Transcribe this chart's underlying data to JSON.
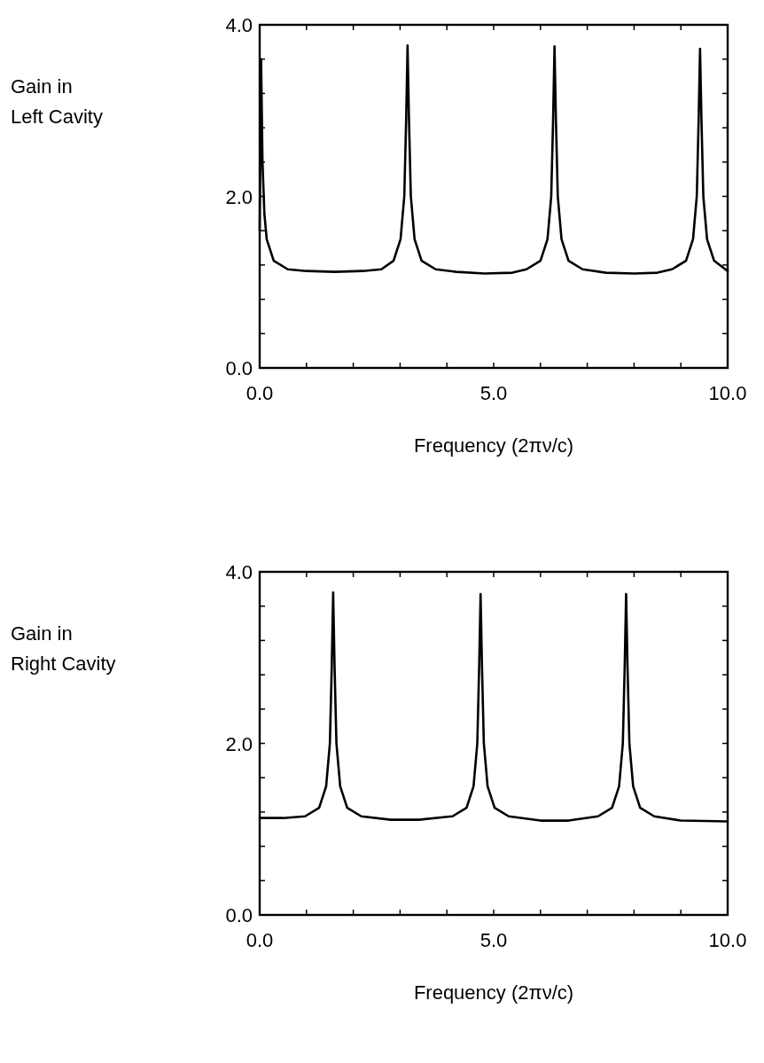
{
  "chart_data": [
    {
      "type": "line",
      "xlabel": "Frequency (2πν/c)",
      "ylabel": "Gain in\nLeft Cavity",
      "xlim": [
        0,
        10
      ],
      "ylim": [
        0,
        4
      ],
      "xticks": [
        {
          "value": 0,
          "label": "0.0"
        },
        {
          "value": 1,
          "label": null
        },
        {
          "value": 2,
          "label": null
        },
        {
          "value": 3,
          "label": null
        },
        {
          "value": 4,
          "label": null
        },
        {
          "value": 5,
          "label": "5.0"
        },
        {
          "value": 6,
          "label": null
        },
        {
          "value": 7,
          "label": null
        },
        {
          "value": 8,
          "label": null
        },
        {
          "value": 9,
          "label": null
        },
        {
          "value": 10,
          "label": "10.0"
        }
      ],
      "yticks": [
        {
          "value": 0,
          "label": "0.0"
        },
        {
          "value": 0.4,
          "label": null
        },
        {
          "value": 0.8,
          "label": null
        },
        {
          "value": 1.2,
          "label": null
        },
        {
          "value": 1.6,
          "label": null
        },
        {
          "value": 2,
          "label": "2.0"
        },
        {
          "value": 2.4,
          "label": null
        },
        {
          "value": 2.8,
          "label": null
        },
        {
          "value": 3.2,
          "label": null
        },
        {
          "value": 3.6,
          "label": null
        },
        {
          "value": 4,
          "label": "4.0"
        }
      ],
      "series": [
        {
          "color": "#000000",
          "x": [
            0,
            0.03,
            0.06,
            0.1,
            0.15,
            0.3,
            0.6,
            1.0,
            1.6,
            2.2,
            2.6,
            2.86,
            3.01,
            3.09,
            3.13,
            3.16,
            3.19,
            3.23,
            3.31,
            3.46,
            3.76,
            4.2,
            4.8,
            5.4,
            5.7,
            6.0,
            6.15,
            6.23,
            6.27,
            6.3,
            6.33,
            6.37,
            6.45,
            6.6,
            6.9,
            7.4,
            8.0,
            8.5,
            8.81,
            9.11,
            9.26,
            9.34,
            9.38,
            9.41,
            9.44,
            9.48,
            9.56,
            9.71,
            10
          ],
          "values": [
            1.6,
            3.6,
            2.4,
            1.8,
            1.5,
            1.25,
            1.15,
            1.13,
            1.12,
            1.13,
            1.15,
            1.25,
            1.5,
            2.0,
            2.9,
            3.76,
            2.9,
            2.0,
            1.5,
            1.25,
            1.15,
            1.12,
            1.1,
            1.11,
            1.15,
            1.25,
            1.5,
            2.0,
            2.9,
            3.75,
            2.9,
            2.0,
            1.5,
            1.25,
            1.15,
            1.11,
            1.1,
            1.11,
            1.15,
            1.25,
            1.5,
            2.0,
            2.9,
            3.72,
            2.9,
            2.0,
            1.5,
            1.25,
            1.13
          ]
        }
      ]
    },
    {
      "type": "line",
      "xlabel": "Frequency (2πν/c)",
      "ylabel": "Gain in\nRight Cavity",
      "xlim": [
        0,
        10
      ],
      "ylim": [
        0,
        4
      ],
      "xticks": [
        {
          "value": 0,
          "label": "0.0"
        },
        {
          "value": 1,
          "label": null
        },
        {
          "value": 2,
          "label": null
        },
        {
          "value": 3,
          "label": null
        },
        {
          "value": 4,
          "label": null
        },
        {
          "value": 5,
          "label": "5.0"
        },
        {
          "value": 6,
          "label": null
        },
        {
          "value": 7,
          "label": null
        },
        {
          "value": 8,
          "label": null
        },
        {
          "value": 9,
          "label": null
        },
        {
          "value": 10,
          "label": "10.0"
        }
      ],
      "yticks": [
        {
          "value": 0,
          "label": "0.0"
        },
        {
          "value": 0.4,
          "label": null
        },
        {
          "value": 0.8,
          "label": null
        },
        {
          "value": 1.2,
          "label": null
        },
        {
          "value": 1.6,
          "label": null
        },
        {
          "value": 2,
          "label": "2.0"
        },
        {
          "value": 2.4,
          "label": null
        },
        {
          "value": 2.8,
          "label": null
        },
        {
          "value": 3.2,
          "label": null
        },
        {
          "value": 3.6,
          "label": null
        },
        {
          "value": 4,
          "label": "4.0"
        }
      ],
      "series": [
        {
          "color": "#000000",
          "x": [
            0,
            0.5,
            0.97,
            1.27,
            1.42,
            1.5,
            1.54,
            1.57,
            1.6,
            1.64,
            1.72,
            1.87,
            2.17,
            2.8,
            3.4,
            4.12,
            4.42,
            4.57,
            4.65,
            4.69,
            4.72,
            4.75,
            4.79,
            4.87,
            5.02,
            5.32,
            6.0,
            6.6,
            7.23,
            7.53,
            7.68,
            7.76,
            7.8,
            7.83,
            7.86,
            7.9,
            7.98,
            8.13,
            8.43,
            9.0,
            10
          ],
          "values": [
            1.13,
            1.13,
            1.15,
            1.25,
            1.5,
            2.0,
            2.9,
            3.76,
            2.9,
            2.0,
            1.5,
            1.25,
            1.15,
            1.11,
            1.11,
            1.15,
            1.25,
            1.5,
            2.0,
            2.9,
            3.74,
            2.9,
            2.0,
            1.5,
            1.25,
            1.15,
            1.1,
            1.1,
            1.15,
            1.25,
            1.5,
            2.0,
            2.9,
            3.74,
            2.9,
            2.0,
            1.5,
            1.25,
            1.15,
            1.1,
            1.09
          ]
        }
      ]
    }
  ]
}
